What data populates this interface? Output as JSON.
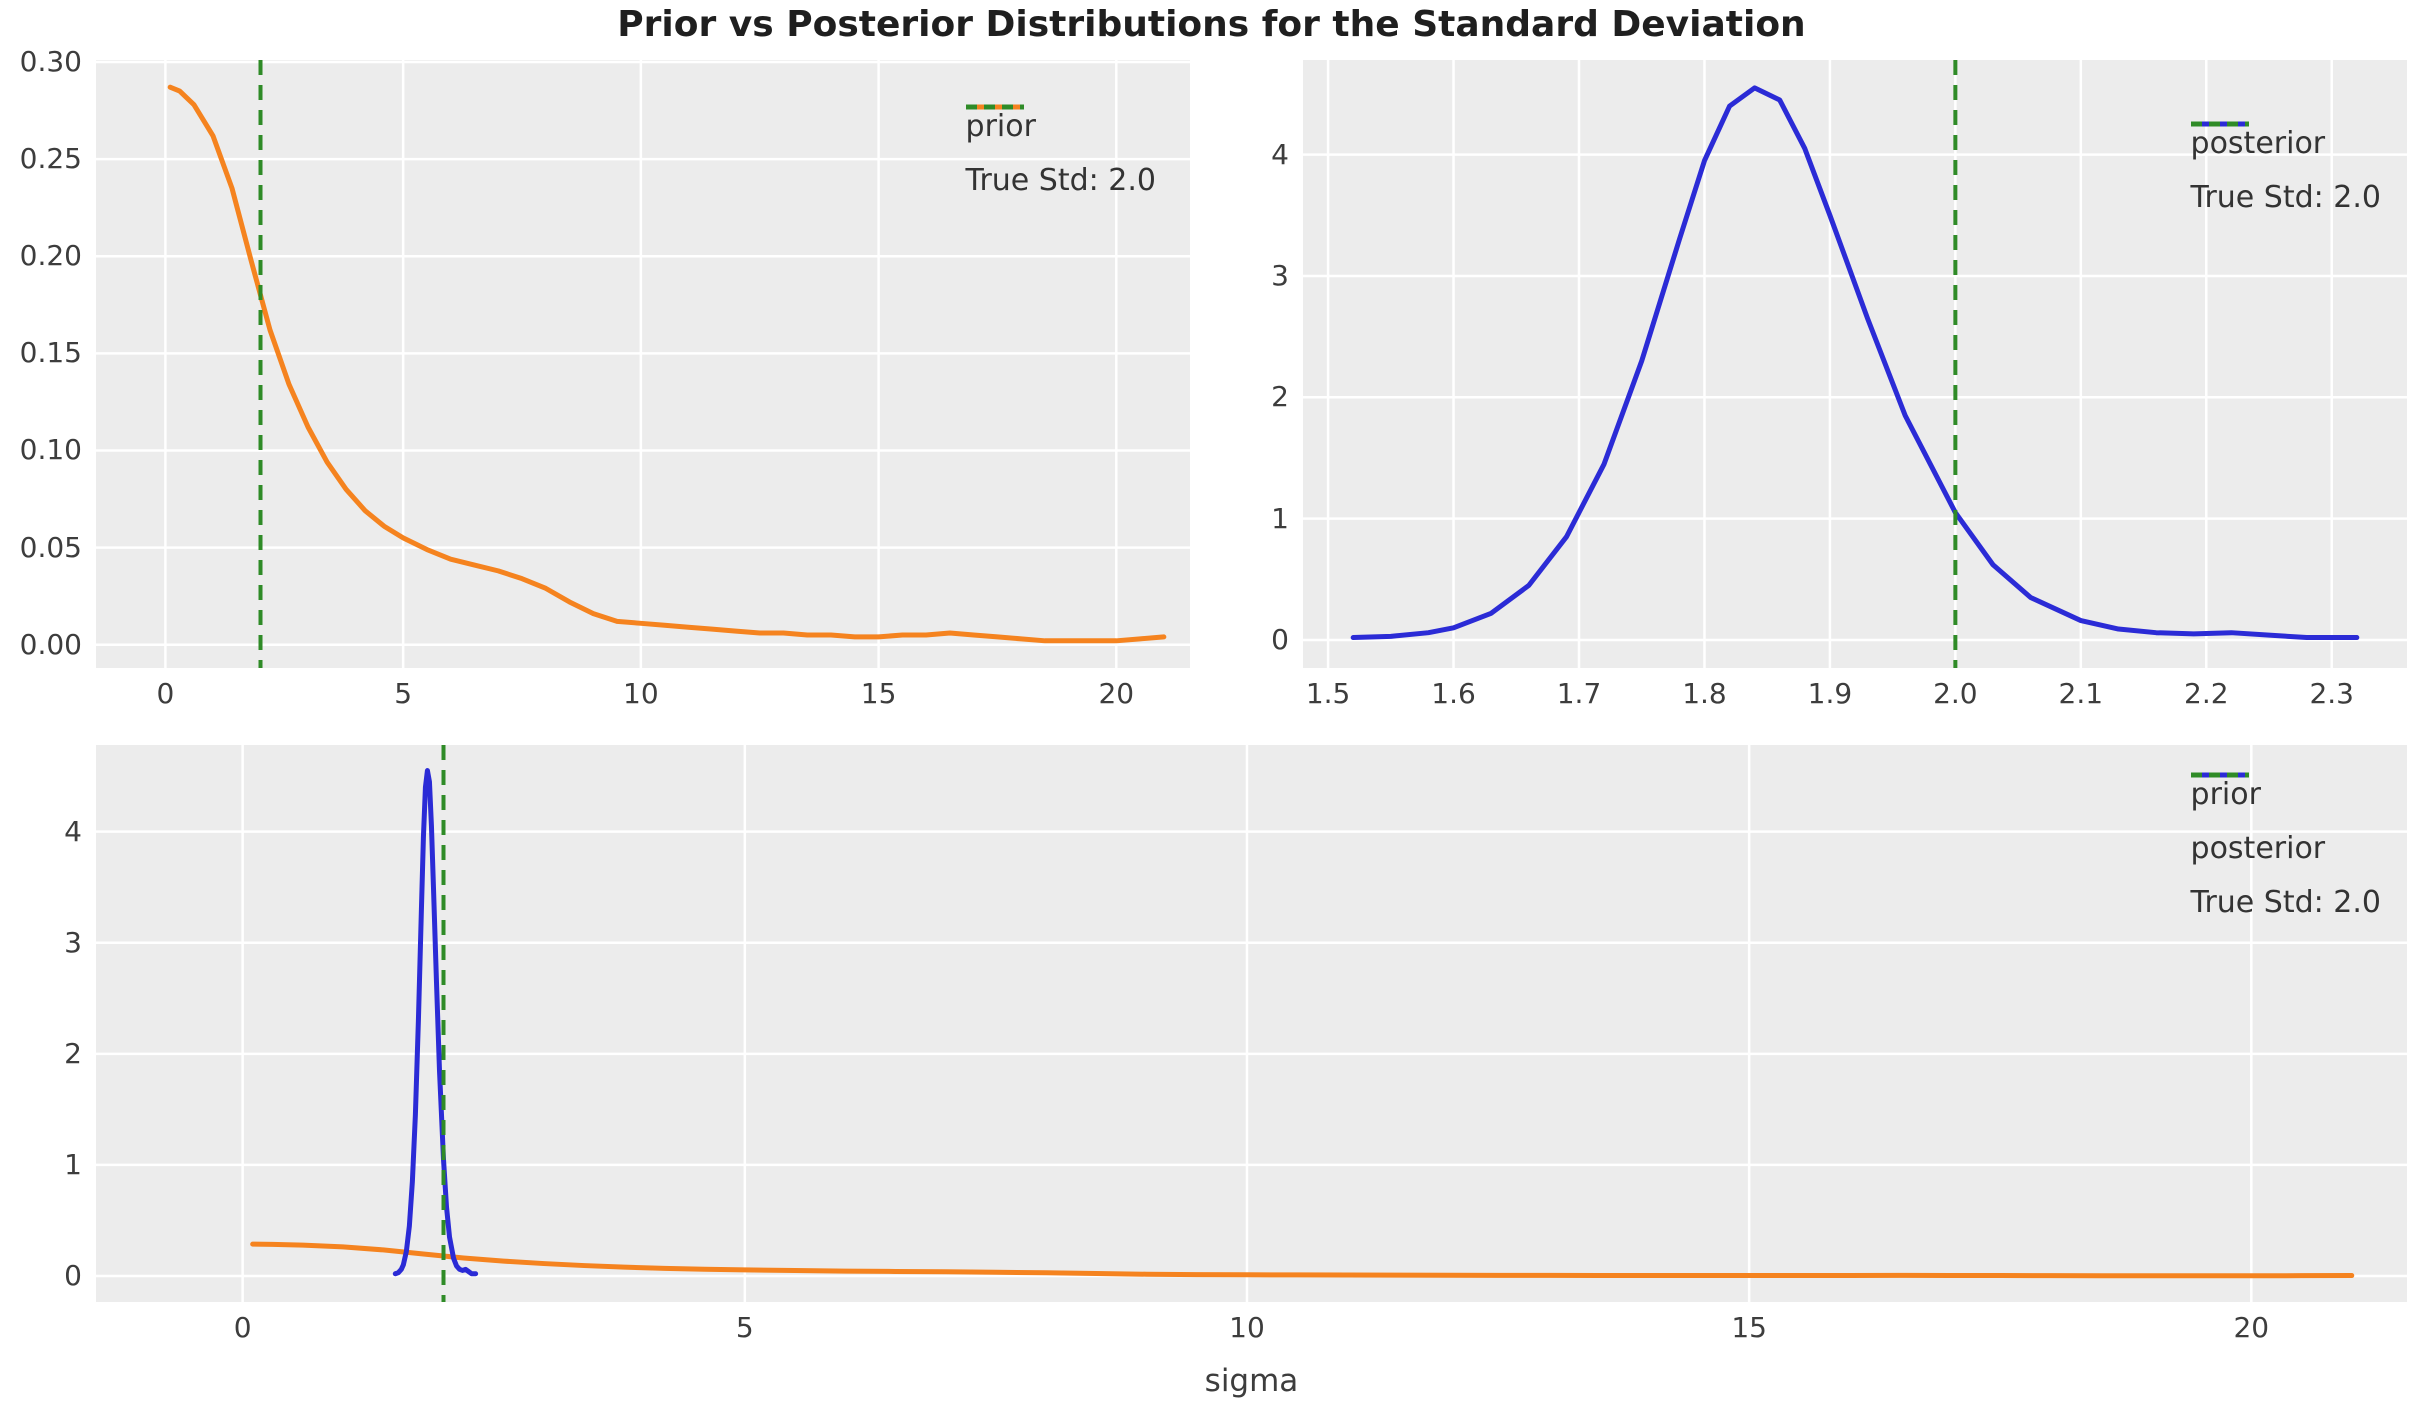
{
  "title": "Prior vs Posterior Distributions for the Standard Deviation",
  "xlabel": "sigma",
  "colors": {
    "prior": "#f5831f",
    "posterior": "#2b2bd6",
    "true_std": "#2f8b27",
    "panel_bg": "#ececec",
    "grid": "#ffffff",
    "tick_text": "#3d3d3d",
    "title_text": "#1f1f1f"
  },
  "series_data": {
    "prior": {
      "x": [
        0.1,
        0.3,
        0.6,
        1.0,
        1.4,
        1.8,
        2.0,
        2.2,
        2.6,
        3.0,
        3.4,
        3.8,
        4.2,
        4.6,
        5.0,
        5.5,
        6.0,
        6.5,
        7.0,
        7.5,
        8.0,
        8.5,
        9.0,
        9.5,
        10.0,
        10.5,
        11.0,
        11.5,
        12.0,
        12.5,
        13.0,
        13.5,
        14.0,
        14.5,
        15.0,
        15.5,
        16.0,
        16.5,
        17.0,
        17.5,
        18.0,
        18.5,
        19.0,
        19.5,
        20.0,
        20.5,
        21.0
      ],
      "y": [
        0.287,
        0.285,
        0.278,
        0.262,
        0.235,
        0.198,
        0.18,
        0.162,
        0.134,
        0.112,
        0.094,
        0.08,
        0.069,
        0.061,
        0.055,
        0.049,
        0.044,
        0.041,
        0.038,
        0.034,
        0.029,
        0.022,
        0.016,
        0.012,
        0.011,
        0.01,
        0.009,
        0.008,
        0.007,
        0.006,
        0.006,
        0.005,
        0.005,
        0.004,
        0.004,
        0.005,
        0.005,
        0.006,
        0.005,
        0.004,
        0.003,
        0.002,
        0.002,
        0.002,
        0.002,
        0.003,
        0.004
      ]
    },
    "posterior": {
      "x": [
        1.52,
        1.55,
        1.58,
        1.6,
        1.63,
        1.66,
        1.69,
        1.72,
        1.75,
        1.78,
        1.8,
        1.82,
        1.84,
        1.86,
        1.88,
        1.9,
        1.93,
        1.96,
        2.0,
        2.03,
        2.06,
        2.1,
        2.13,
        2.16,
        2.19,
        2.22,
        2.25,
        2.28,
        2.32
      ],
      "y": [
        0.02,
        0.03,
        0.06,
        0.1,
        0.22,
        0.45,
        0.85,
        1.45,
        2.3,
        3.3,
        3.95,
        4.4,
        4.55,
        4.45,
        4.05,
        3.5,
        2.65,
        1.85,
        1.05,
        0.62,
        0.35,
        0.16,
        0.09,
        0.06,
        0.05,
        0.06,
        0.04,
        0.02,
        0.02
      ]
    }
  },
  "chart_data": [
    {
      "id": "prior-panel",
      "type": "line",
      "title": "",
      "xlim": [
        -1.46,
        21.55
      ],
      "ylim": [
        -0.012,
        0.301
      ],
      "xticks": {
        "values": [
          0,
          5,
          10,
          15,
          20
        ],
        "labels": [
          "0",
          "5",
          "10",
          "15",
          "20"
        ]
      },
      "yticks": {
        "values": [
          0.0,
          0.05,
          0.1,
          0.15,
          0.2,
          0.25,
          0.3
        ],
        "labels": [
          "0.00",
          "0.05",
          "0.10",
          "0.15",
          "0.20",
          "0.25",
          "0.30"
        ]
      },
      "series": [
        {
          "name": "prior",
          "data": "prior",
          "color": "prior"
        }
      ],
      "vline": {
        "x": 2.0,
        "color": "true_std"
      },
      "legend": [
        {
          "label": "prior",
          "sample": "solid",
          "color": "prior"
        },
        {
          "label": "True Std: 2.0",
          "sample": "dashed",
          "color": "true_std"
        }
      ]
    },
    {
      "id": "posterior-panel",
      "type": "line",
      "title": "",
      "xlim": [
        1.48,
        2.36
      ],
      "ylim": [
        -0.231,
        4.78
      ],
      "xticks": {
        "values": [
          1.5,
          1.6,
          1.7,
          1.8,
          1.9,
          2.0,
          2.1,
          2.2,
          2.3
        ],
        "labels": [
          "1.5",
          "1.6",
          "1.7",
          "1.8",
          "1.9",
          "2.0",
          "2.1",
          "2.2",
          "2.3"
        ]
      },
      "yticks": {
        "values": [
          0,
          1,
          2,
          3,
          4
        ],
        "labels": [
          "0",
          "1",
          "2",
          "3",
          "4"
        ]
      },
      "series": [
        {
          "name": "posterior",
          "data": "posterior",
          "color": "posterior"
        }
      ],
      "vline": {
        "x": 2.0,
        "color": "true_std"
      },
      "legend": [
        {
          "label": "posterior",
          "sample": "solid",
          "color": "posterior"
        },
        {
          "label": "True Std: 2.0",
          "sample": "dashed",
          "color": "true_std"
        }
      ]
    },
    {
      "id": "combined-panel",
      "type": "line",
      "title": "",
      "xlabel": "sigma",
      "xlim": [
        -1.46,
        21.55
      ],
      "ylim": [
        -0.234,
        4.78
      ],
      "xticks": {
        "values": [
          0,
          5,
          10,
          15,
          20
        ],
        "labels": [
          "0",
          "5",
          "10",
          "15",
          "20"
        ]
      },
      "yticks": {
        "values": [
          0,
          1,
          2,
          3,
          4
        ],
        "labels": [
          "0",
          "1",
          "2",
          "3",
          "4"
        ]
      },
      "series": [
        {
          "name": "prior",
          "data": "prior",
          "color": "prior"
        },
        {
          "name": "posterior",
          "data": "posterior",
          "color": "posterior"
        }
      ],
      "vline": {
        "x": 2.0,
        "color": "true_std"
      },
      "legend": [
        {
          "label": "prior",
          "sample": "solid",
          "color": "prior"
        },
        {
          "label": "posterior",
          "sample": "solid",
          "color": "posterior"
        },
        {
          "label": "True Std: 2.0",
          "sample": "dashed",
          "color": "true_std"
        }
      ]
    }
  ]
}
